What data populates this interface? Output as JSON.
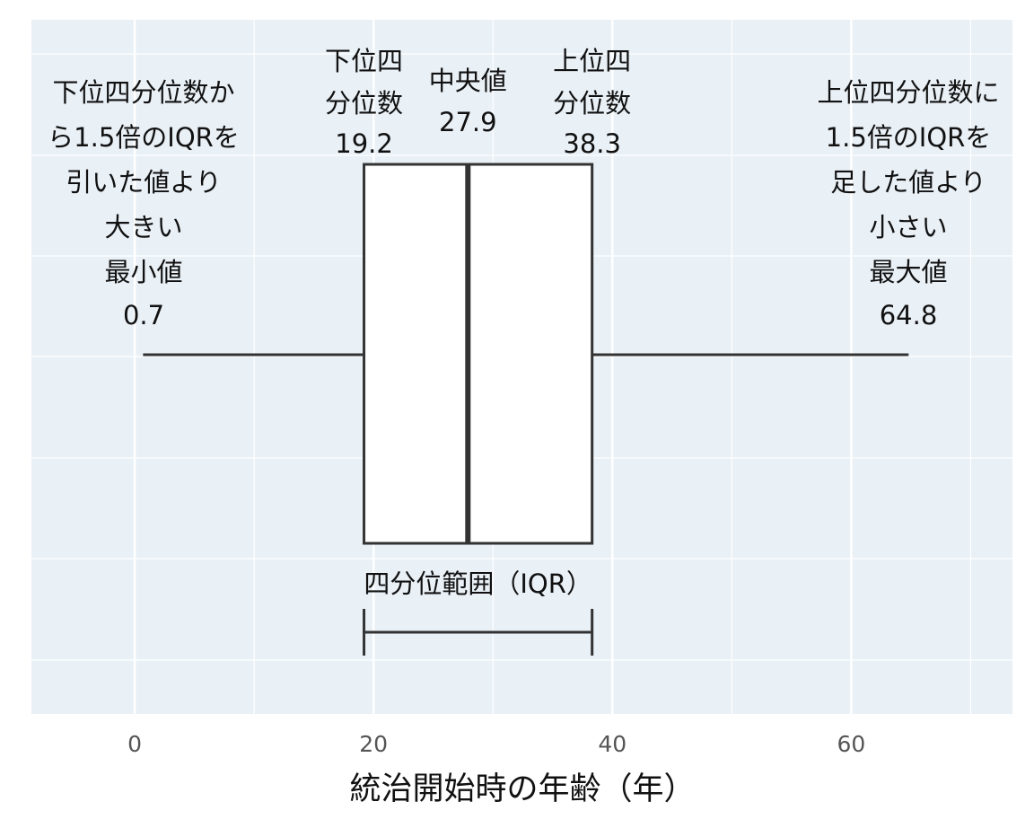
{
  "chart_data": {
    "type": "box",
    "xlabel": "統治開始時の年齢（年）",
    "xlim": [
      -8.65,
      73.5
    ],
    "xticks": [
      0,
      20,
      40,
      60
    ],
    "minor_grid": [
      10,
      30,
      50,
      70
    ],
    "grid": true,
    "background": "#e9f0f6",
    "box": {
      "whislo": 0.7,
      "q1": 19.2,
      "med": 27.9,
      "q3": 38.3,
      "whishi": 64.8
    },
    "annotations": {
      "whislo": [
        "下位四分位数か",
        "ら1.5倍のIQRを",
        "引いた値より",
        "大きい",
        "最小値"
      ],
      "q1": [
        "下位四",
        "分位数"
      ],
      "med": [
        "中央値"
      ],
      "q3": [
        "上位四",
        "分位数"
      ],
      "whishi": [
        "上位四分位数に",
        "1.5倍のIQRを",
        "足した値より",
        "小さい",
        "最大値"
      ],
      "iqr": "四分位範囲（IQR）"
    }
  }
}
